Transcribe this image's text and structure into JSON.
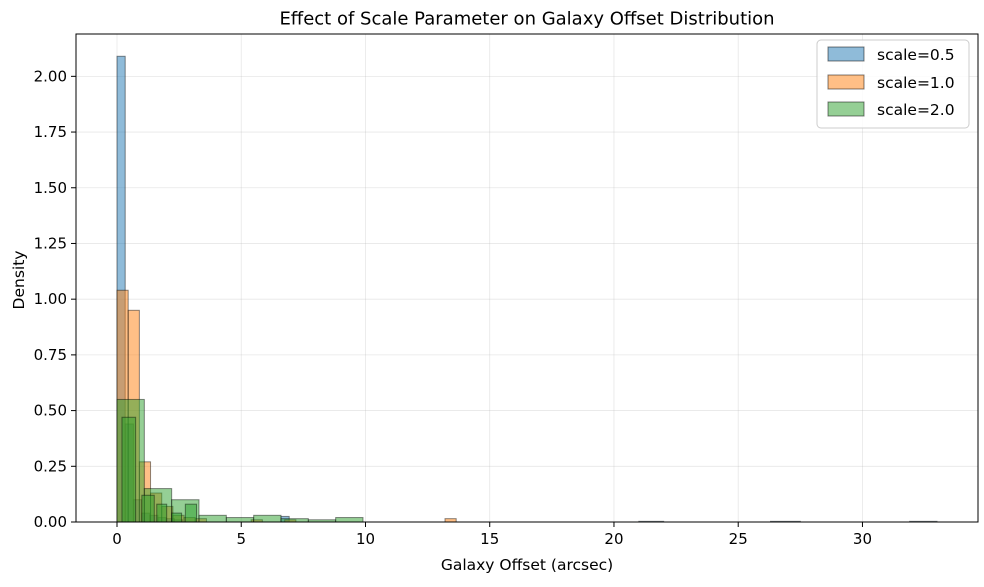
{
  "chart_data": {
    "type": "bar",
    "title": "Effect of Scale Parameter on Galaxy Offset Distribution",
    "xlabel": "Galaxy Offset (arcsec)",
    "ylabel": "Density",
    "xlim": [
      -1.65,
      34.65
    ],
    "ylim": [
      0,
      2.19
    ],
    "x_ticks": [
      0,
      5,
      10,
      15,
      20,
      25,
      30
    ],
    "y_ticks": [
      0.0,
      0.25,
      0.5,
      0.75,
      1.0,
      1.25,
      1.5,
      1.75,
      2.0
    ],
    "grid": true,
    "legend_position": "top-right",
    "histogram": true,
    "series": [
      {
        "name": "scale=0.5",
        "color": "#1f77b4",
        "bins": [
          {
            "x0": 0.0,
            "x1": 0.33,
            "value": 2.09
          },
          {
            "x0": 0.33,
            "x1": 0.66,
            "value": 0.44
          },
          {
            "x0": 0.66,
            "x1": 0.99,
            "value": 0.1
          },
          {
            "x0": 0.99,
            "x1": 1.32,
            "value": 0.04
          },
          {
            "x0": 1.32,
            "x1": 1.65,
            "value": 0.03
          },
          {
            "x0": 1.65,
            "x1": 1.98,
            "value": 0.02
          },
          {
            "x0": 1.98,
            "x1": 2.31,
            "value": 0.015
          },
          {
            "x0": 2.31,
            "x1": 2.64,
            "value": 0.01
          },
          {
            "x0": 6.6,
            "x1": 6.93,
            "value": 0.025
          },
          {
            "x0": 21.0,
            "x1": 22.0,
            "value": 0.003
          },
          {
            "x0": 26.3,
            "x1": 27.5,
            "value": 0.003
          },
          {
            "x0": 31.9,
            "x1": 33.0,
            "value": 0.003
          }
        ]
      },
      {
        "name": "scale=1.0",
        "color": "#ff7f0e",
        "bins": [
          {
            "x0": 0.0,
            "x1": 0.45,
            "value": 1.04
          },
          {
            "x0": 0.45,
            "x1": 0.9,
            "value": 0.95
          },
          {
            "x0": 0.9,
            "x1": 1.35,
            "value": 0.27
          },
          {
            "x0": 1.35,
            "x1": 1.8,
            "value": 0.13
          },
          {
            "x0": 1.8,
            "x1": 2.25,
            "value": 0.07
          },
          {
            "x0": 2.25,
            "x1": 2.7,
            "value": 0.03
          },
          {
            "x0": 2.7,
            "x1": 3.15,
            "value": 0.02
          },
          {
            "x0": 3.15,
            "x1": 3.6,
            "value": 0.015
          },
          {
            "x0": 5.4,
            "x1": 5.85,
            "value": 0.01
          },
          {
            "x0": 6.75,
            "x1": 7.2,
            "value": 0.01
          },
          {
            "x0": 13.2,
            "x1": 13.65,
            "value": 0.015
          }
        ]
      },
      {
        "name": "scale=2.0",
        "color": "#2ca02c",
        "bins": [
          {
            "x0": 0.0,
            "x1": 1.1,
            "value": 0.55
          },
          {
            "x0": 1.1,
            "x1": 2.2,
            "value": 0.15
          },
          {
            "x0": 2.2,
            "x1": 3.3,
            "value": 0.1
          },
          {
            "x0": 3.3,
            "x1": 4.4,
            "value": 0.03
          },
          {
            "x0": 4.4,
            "x1": 5.5,
            "value": 0.02
          },
          {
            "x0": 5.5,
            "x1": 6.6,
            "value": 0.03
          },
          {
            "x0": 6.6,
            "x1": 7.7,
            "value": 0.015
          },
          {
            "x0": 7.7,
            "x1": 8.8,
            "value": 0.01
          },
          {
            "x0": 8.8,
            "x1": 9.9,
            "value": 0.02
          }
        ]
      }
    ],
    "detail_bars": [
      {
        "x0": 0.2,
        "x1": 0.75,
        "value": 0.47,
        "color": "#2ca02c"
      },
      {
        "x0": 1.0,
        "x1": 1.5,
        "value": 0.12,
        "color": "#2ca02c"
      },
      {
        "x0": 1.6,
        "x1": 2.0,
        "value": 0.08,
        "color": "#2ca02c"
      },
      {
        "x0": 2.2,
        "x1": 2.6,
        "value": 0.04,
        "color": "#2ca02c"
      },
      {
        "x0": 2.75,
        "x1": 3.2,
        "value": 0.08,
        "color": "#2ca02c"
      }
    ]
  }
}
